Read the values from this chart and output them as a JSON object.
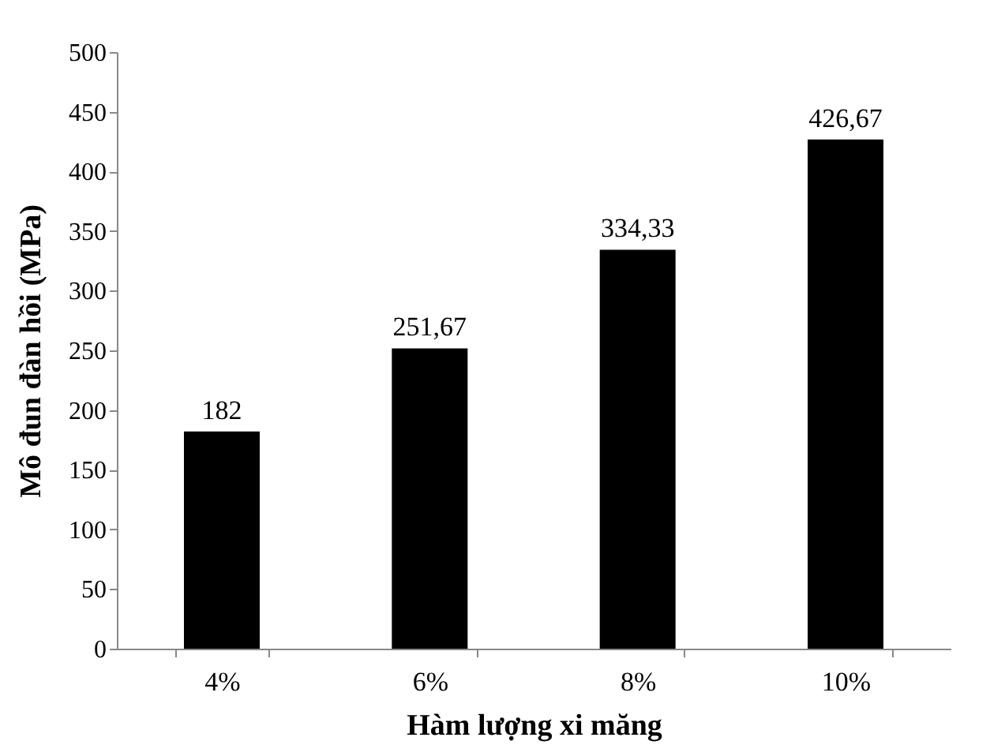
{
  "chart_data": {
    "type": "bar",
    "xlabel": "Hàm lượng xi măng",
    "ylabel": "Mô đun đàn hồi  (MPa)",
    "categories": [
      "4%",
      "6%",
      "8%",
      "10%"
    ],
    "values": [
      182,
      251.67,
      334.33,
      426.67
    ],
    "value_labels": [
      "182",
      "251,67",
      "334,33",
      "426,67"
    ],
    "color": "#000000",
    "ylim": [
      0,
      500
    ],
    "yticks": [
      0,
      50,
      100,
      150,
      200,
      250,
      300,
      350,
      400,
      450,
      500
    ],
    "grid": false
  }
}
